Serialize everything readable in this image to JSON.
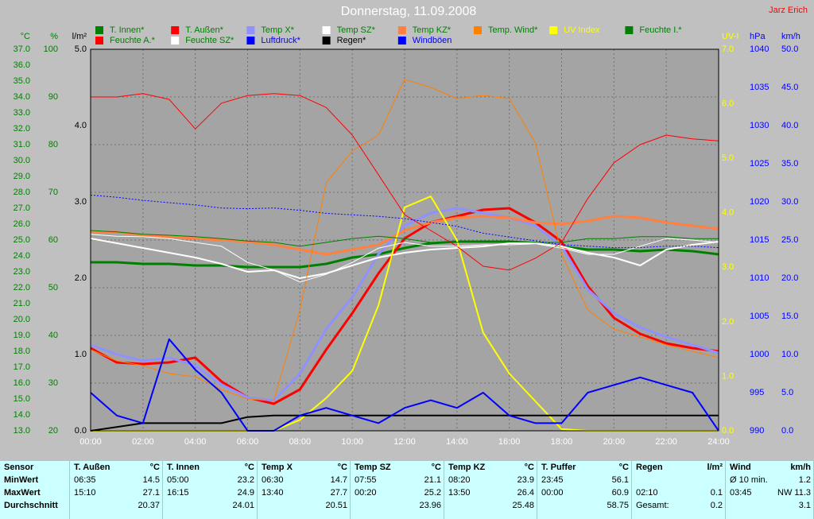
{
  "chart_data": {
    "type": "line",
    "title": "Donnerstag, 11.09.2008",
    "credit": "Jarz Erich",
    "grid": true,
    "xlim": [
      0,
      24
    ],
    "xticks": [
      {
        "value": 0,
        "label": "00:00"
      },
      {
        "value": 2,
        "label": "02:00"
      },
      {
        "value": 4,
        "label": "04:00"
      },
      {
        "value": 6,
        "label": "06:00"
      },
      {
        "value": 8,
        "label": "08:00"
      },
      {
        "value": 10,
        "label": "10:00"
      },
      {
        "value": 12,
        "label": "12:00"
      },
      {
        "value": 14,
        "label": "14:00"
      },
      {
        "value": 16,
        "label": "16:00"
      },
      {
        "value": 18,
        "label": "18:00"
      },
      {
        "value": 20,
        "label": "20:00"
      },
      {
        "value": 22,
        "label": "22:00"
      },
      {
        "value": 24,
        "label": "24:00"
      }
    ],
    "x": [
      0,
      1,
      2,
      3,
      4,
      5,
      6,
      7,
      8,
      9,
      10,
      11,
      12,
      13,
      14,
      15,
      16,
      17,
      18,
      19,
      20,
      21,
      22,
      23,
      24
    ],
    "axes": [
      {
        "label": "°C",
        "side": "left",
        "color": "#008000",
        "lim": [
          13,
          37
        ],
        "ticks": [
          {
            "value": 13,
            "label": "13.0"
          },
          {
            "value": 14,
            "label": "14.0"
          },
          {
            "value": 15,
            "label": "15.0"
          },
          {
            "value": 16,
            "label": "16.0"
          },
          {
            "value": 17,
            "label": "17.0"
          },
          {
            "value": 18,
            "label": "18.0"
          },
          {
            "value": 19,
            "label": "19.0"
          },
          {
            "value": 20,
            "label": "20.0"
          },
          {
            "value": 21,
            "label": "21.0"
          },
          {
            "value": 22,
            "label": "22.0"
          },
          {
            "value": 23,
            "label": "23.0"
          },
          {
            "value": 24,
            "label": "24.0"
          },
          {
            "value": 25,
            "label": "25.0"
          },
          {
            "value": 26,
            "label": "26.0"
          },
          {
            "value": 27,
            "label": "27.0"
          },
          {
            "value": 28,
            "label": "28.0"
          },
          {
            "value": 29,
            "label": "29.0"
          },
          {
            "value": 30,
            "label": "30.0"
          },
          {
            "value": 31,
            "label": "31.0"
          },
          {
            "value": 32,
            "label": "32.0"
          },
          {
            "value": 33,
            "label": "33.0"
          },
          {
            "value": 34,
            "label": "34.0"
          },
          {
            "value": 35,
            "label": "35.0"
          },
          {
            "value": 36,
            "label": "36.0"
          },
          {
            "value": 37,
            "label": "37.0"
          }
        ]
      },
      {
        "label": "%",
        "side": "left",
        "color": "#008000",
        "lim": [
          20,
          100
        ],
        "grid": true,
        "ticks": [
          20,
          30,
          40,
          50,
          60,
          70,
          80,
          90,
          100
        ]
      },
      {
        "label": "l/m²",
        "side": "left",
        "color": "#000000",
        "lim": [
          0,
          5
        ],
        "ticks": [
          {
            "value": 0,
            "label": "0.0"
          },
          {
            "value": 1,
            "label": "1.0"
          },
          {
            "value": 2,
            "label": "2.0"
          },
          {
            "value": 3,
            "label": "3.0"
          },
          {
            "value": 4,
            "label": "4.0"
          },
          {
            "value": 5,
            "label": "5.0"
          }
        ]
      },
      {
        "label": "UV-I",
        "side": "right",
        "color": "#ffff00",
        "lim": [
          0,
          7
        ],
        "ticks": [
          {
            "value": 0,
            "label": "0.0"
          },
          {
            "value": 1,
            "label": "1.0"
          },
          {
            "value": 2,
            "label": "2.0"
          },
          {
            "value": 3,
            "label": "3.0"
          },
          {
            "value": 4,
            "label": "4.0"
          },
          {
            "value": 5,
            "label": "5.0"
          },
          {
            "value": 6,
            "label": "6.0"
          },
          {
            "value": 7,
            "label": "7.0"
          }
        ]
      },
      {
        "label": "hPa",
        "side": "right",
        "color": "#0000ff",
        "lim": [
          990,
          1040
        ],
        "ticks": [
          990,
          995,
          1000,
          1005,
          1010,
          1015,
          1020,
          1025,
          1030,
          1035,
          1040
        ]
      },
      {
        "label": "km/h",
        "side": "right",
        "color": "#0000ff",
        "lim": [
          0,
          50
        ],
        "ticks": [
          {
            "value": 0,
            "label": "0.0"
          },
          {
            "value": 5,
            "label": "5.0"
          },
          {
            "value": 10,
            "label": "10.0"
          },
          {
            "value": 15,
            "label": "15.0"
          },
          {
            "value": 20,
            "label": "20.0"
          },
          {
            "value": 25,
            "label": "25.0"
          },
          {
            "value": 30,
            "label": "30.0"
          },
          {
            "value": 35,
            "label": "35.0"
          },
          {
            "value": 40,
            "label": "40.0"
          },
          {
            "value": 45,
            "label": "45.0"
          },
          {
            "value": 50,
            "label": "50.0"
          }
        ]
      }
    ],
    "series": [
      {
        "name": "T. Innen*",
        "color": "#008000",
        "axis": 0,
        "width": 3,
        "values": [
          23.6,
          23.6,
          23.5,
          23.5,
          23.4,
          23.4,
          23.3,
          23.3,
          23.3,
          23.5,
          23.9,
          24.1,
          24.5,
          24.8,
          24.9,
          24.9,
          24.9,
          24.8,
          24.6,
          24.4,
          24.4,
          24.3,
          24.4,
          24.3,
          24.1
        ]
      },
      {
        "name": "T. Außen*",
        "color": "#ff0000",
        "axis": 0,
        "width": 3,
        "values": [
          18.2,
          17.3,
          17.2,
          17.3,
          17.6,
          16.1,
          15.1,
          14.7,
          15.6,
          18.1,
          20.4,
          22.9,
          25.1,
          26.1,
          26.5,
          26.9,
          27.0,
          26.1,
          24.9,
          22.1,
          20.1,
          19.1,
          18.5,
          18.2,
          18.0
        ]
      },
      {
        "name": "Temp X*",
        "color": "#9090ff",
        "axis": 0,
        "width": 3,
        "values": [
          18.4,
          17.8,
          17.4,
          17.6,
          17.1,
          15.9,
          15.1,
          14.9,
          16.6,
          19.4,
          21.4,
          24.1,
          25.9,
          26.7,
          27.0,
          26.7,
          26.4,
          25.9,
          24.6,
          21.9,
          20.4,
          19.5,
          18.9,
          18.4,
          17.9
        ]
      },
      {
        "name": "Temp SZ*",
        "color": "#ffffff",
        "axis": 0,
        "width": 2,
        "values": [
          25.1,
          24.8,
          24.5,
          24.2,
          23.9,
          23.5,
          23.0,
          23.1,
          22.6,
          22.9,
          23.4,
          23.9,
          24.2,
          24.4,
          24.5,
          24.6,
          24.8,
          24.8,
          24.6,
          24.2,
          23.9,
          23.4,
          24.4,
          24.7,
          24.9
        ]
      },
      {
        "name": "Temp KZ*",
        "color": "#ff8040",
        "axis": 0,
        "width": 3,
        "values": [
          25.5,
          25.5,
          25.3,
          25.2,
          25.1,
          25.0,
          24.9,
          24.7,
          24.4,
          24.1,
          24.4,
          24.7,
          25.6,
          26.1,
          26.4,
          26.5,
          26.4,
          26.1,
          26.0,
          26.2,
          26.5,
          26.4,
          26.1,
          25.9,
          25.7
        ]
      },
      {
        "name": "Temp. Wind*",
        "color": "#ff8000",
        "axis": 0,
        "width": 1,
        "values": [
          18.1,
          17.4,
          17.1,
          16.6,
          16.4,
          15.6,
          15.0,
          14.9,
          20.6,
          28.6,
          30.6,
          31.6,
          35.1,
          34.6,
          33.9,
          34.1,
          33.9,
          31.1,
          24.1,
          20.6,
          19.4,
          18.9,
          18.4,
          18.0,
          17.6
        ]
      },
      {
        "name": "UV Index",
        "color": "#ffff00",
        "axis": 3,
        "width": 2,
        "values": [
          0,
          0,
          0,
          0,
          0,
          0,
          0,
          0,
          0.2,
          0.6,
          1.1,
          2.3,
          4.1,
          4.3,
          3.5,
          1.8,
          1.05,
          0.54,
          0.03,
          0,
          0,
          0,
          0,
          0,
          0
        ]
      },
      {
        "name": "Feuchte I.*",
        "color": "#008000",
        "axis": 1,
        "width": 1,
        "values": [
          62,
          61.7,
          61.2,
          61,
          60.7,
          60.3,
          59.8,
          59.5,
          58.7,
          59.5,
          60.3,
          60.8,
          60.3,
          59.5,
          59.5,
          59.8,
          59.8,
          59.5,
          59.5,
          60.3,
          60.3,
          60.7,
          60.7,
          60.3,
          60.3
        ]
      },
      {
        "name": "Feuchte A.*",
        "color": "#ff0000",
        "axis": 1,
        "width": 1,
        "values": [
          90,
          90,
          90.7,
          89.5,
          83.3,
          88.7,
          90.3,
          90.7,
          90.3,
          87.8,
          82,
          73.7,
          65.3,
          62,
          58.7,
          54.5,
          53.7,
          56.2,
          59.5,
          68.7,
          76.2,
          80,
          82,
          81.2,
          80.8
        ]
      },
      {
        "name": "Feuchte SZ*",
        "color": "#ffffff",
        "axis": 1,
        "width": 1,
        "values": [
          61.2,
          60.8,
          60.7,
          60.3,
          59.5,
          58.7,
          55.3,
          53.7,
          51.2,
          52.8,
          55.3,
          58.3,
          59.5,
          58.7,
          58.7,
          59,
          59,
          59.2,
          58.3,
          57,
          57,
          58.7,
          60.3,
          60,
          59.5
        ]
      },
      {
        "name": "Luftdruck*",
        "color": "#0000ff",
        "axis": 4,
        "width": 1,
        "dash": true,
        "values": [
          1020.9,
          1020.6,
          1020.2,
          1019.9,
          1019.6,
          1019.2,
          1019.1,
          1019.2,
          1018.9,
          1018.5,
          1018.3,
          1018.1,
          1017.8,
          1017.3,
          1016.8,
          1015.9,
          1015.4,
          1014.9,
          1014.4,
          1014.2,
          1014.0,
          1014.0,
          1014.2,
          1014.2,
          1014.0
        ]
      },
      {
        "name": "Regen*",
        "color": "#000000",
        "axis": 2,
        "width": 2,
        "values": [
          0,
          0.05,
          0.1,
          0.1,
          0.1,
          0.1,
          0.18,
          0.2,
          0.2,
          0.2,
          0.2,
          0.2,
          0.2,
          0.2,
          0.2,
          0.2,
          0.2,
          0.2,
          0.2,
          0.2,
          0.2,
          0.2,
          0.2,
          0.2,
          0.2
        ]
      },
      {
        "name": "Windböen",
        "color": "#0000ff",
        "axis": 5,
        "width": 2,
        "values": [
          5,
          2,
          1,
          12,
          8,
          5,
          0,
          0,
          2,
          3,
          2,
          1,
          3,
          4,
          3,
          5,
          2,
          1,
          1,
          5,
          6,
          7,
          6,
          5,
          0
        ]
      }
    ]
  },
  "table": {
    "row_labels": [
      "Sensor",
      "MinWert",
      "MaxWert",
      "Durchschnitt"
    ],
    "columns": [
      {
        "name": "T. Außen",
        "unit": "°C",
        "rows": [
          {
            "time": "06:35",
            "value": "14.5"
          },
          {
            "time": "15:10",
            "value": "27.1"
          },
          {
            "value": "20.37"
          }
        ]
      },
      {
        "name": "T. Innen",
        "unit": "°C",
        "rows": [
          {
            "time": "05:00",
            "value": "23.2"
          },
          {
            "time": "16:15",
            "value": "24.9"
          },
          {
            "value": "24.01"
          }
        ]
      },
      {
        "name": "Temp X",
        "unit": "°C",
        "rows": [
          {
            "time": "06:30",
            "value": "14.7"
          },
          {
            "time": "13:40",
            "value": "27.7"
          },
          {
            "value": "20.51"
          }
        ]
      },
      {
        "name": "Temp SZ",
        "unit": "°C",
        "rows": [
          {
            "time": "07:55",
            "value": "21.1"
          },
          {
            "time": "00:20",
            "value": "25.2"
          },
          {
            "value": "23.96"
          }
        ]
      },
      {
        "name": "Temp KZ",
        "unit": "°C",
        "rows": [
          {
            "time": "08:20",
            "value": "23.9"
          },
          {
            "time": "13:50",
            "value": "26.4"
          },
          {
            "value": "25.48"
          }
        ]
      },
      {
        "name": "T. Puffer",
        "unit": "°C",
        "rows": [
          {
            "time": "23:45",
            "value": "56.1"
          },
          {
            "time": "00:00",
            "value": "60.9"
          },
          {
            "value": "58.75"
          }
        ]
      },
      {
        "name": "Regen",
        "unit": "l/m²",
        "rows": [
          {},
          {
            "time": "02:10",
            "value": "0.1"
          },
          {
            "time": "Gesamt:",
            "value": "0.2"
          }
        ]
      },
      {
        "name": "Wind",
        "unit": "km/h",
        "rows": [
          {
            "time": "Ø 10 min.",
            "value": "1.2"
          },
          {
            "time": "03:45",
            "value": "NW 11.3"
          },
          {
            "value": "3.1"
          }
        ]
      }
    ]
  }
}
